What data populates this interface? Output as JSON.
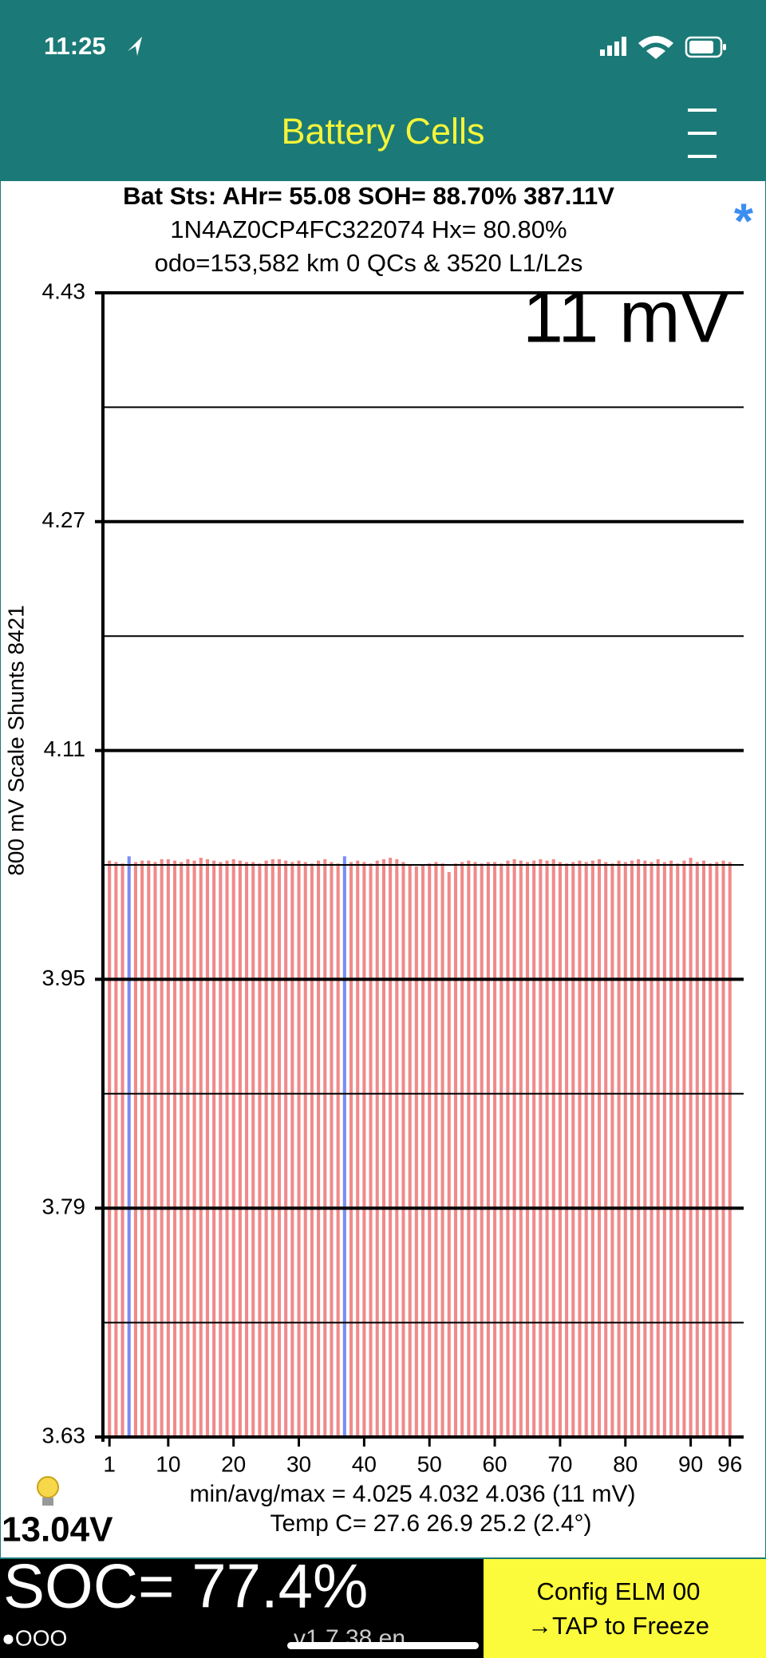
{
  "status_bar": {
    "time": "11:25"
  },
  "header": {
    "title": "Battery Cells"
  },
  "info": {
    "line1": "Bat Sts: AHr= 55.08 SOH= 88.70% 387.11V",
    "line2": "1N4AZ0CP4FC322074   Hx= 80.80%",
    "line3": "odo=153,582 km 0 QCs & 3520 L1/L2s",
    "marker": "*"
  },
  "chart_data": {
    "type": "bar",
    "scale_label": "11 mV",
    "y_label": "800 mV Scale   Shunts 8421",
    "x": [
      1,
      2,
      3,
      4,
      5,
      6,
      7,
      8,
      9,
      10,
      11,
      12,
      13,
      14,
      15,
      16,
      17,
      18,
      19,
      20,
      21,
      22,
      23,
      24,
      25,
      26,
      27,
      28,
      29,
      30,
      31,
      32,
      33,
      34,
      35,
      36,
      37,
      38,
      39,
      40,
      41,
      42,
      43,
      44,
      45,
      46,
      47,
      48,
      49,
      50,
      51,
      52,
      53,
      54,
      55,
      56,
      57,
      58,
      59,
      60,
      61,
      62,
      63,
      64,
      65,
      66,
      67,
      68,
      69,
      70,
      71,
      72,
      73,
      74,
      75,
      76,
      77,
      78,
      79,
      80,
      81,
      82,
      83,
      84,
      85,
      86,
      87,
      88,
      89,
      90,
      91,
      92,
      93,
      94,
      95,
      96
    ],
    "values": [
      4.033,
      4.032,
      4.031,
      4.036,
      4.032,
      4.033,
      4.033,
      4.032,
      4.034,
      4.034,
      4.033,
      4.032,
      4.034,
      4.033,
      4.035,
      4.034,
      4.033,
      4.032,
      4.033,
      4.034,
      4.033,
      4.032,
      4.032,
      4.031,
      4.033,
      4.034,
      4.034,
      4.033,
      4.032,
      4.033,
      4.032,
      4.031,
      4.033,
      4.034,
      4.032,
      4.031,
      4.036,
      4.032,
      4.033,
      4.032,
      4.031,
      4.033,
      4.034,
      4.035,
      4.034,
      4.032,
      4.03,
      4.029,
      4.03,
      4.031,
      4.032,
      4.031,
      4.025,
      4.031,
      4.032,
      4.033,
      4.032,
      4.031,
      4.032,
      4.032,
      4.031,
      4.033,
      4.034,
      4.033,
      4.032,
      4.033,
      4.034,
      4.033,
      4.034,
      4.032,
      4.031,
      4.032,
      4.033,
      4.032,
      4.033,
      4.034,
      4.032,
      4.031,
      4.033,
      4.032,
      4.033,
      4.034,
      4.033,
      4.032,
      4.034,
      4.032,
      4.033,
      4.031,
      4.033,
      4.035,
      4.032,
      4.033,
      4.031,
      4.032,
      4.033,
      4.032
    ],
    "colors": [
      "#f08a8a",
      "#f08a8a",
      "#f08a8a",
      "#7b8cf0",
      "#f08a8a",
      "#f08a8a",
      "#f08a8a",
      "#f08a8a",
      "#f08a8a",
      "#f08a8a",
      "#f08a8a",
      "#f08a8a",
      "#f08a8a",
      "#f08a8a",
      "#f08a8a",
      "#f08a8a",
      "#f08a8a",
      "#f08a8a",
      "#f08a8a",
      "#f08a8a",
      "#f08a8a",
      "#f08a8a",
      "#f08a8a",
      "#f08a8a",
      "#f08a8a",
      "#f08a8a",
      "#f08a8a",
      "#f08a8a",
      "#f08a8a",
      "#f08a8a",
      "#f08a8a",
      "#f08a8a",
      "#f08a8a",
      "#f08a8a",
      "#f08a8a",
      "#f08a8a",
      "#7b8cf0",
      "#f08a8a",
      "#f08a8a",
      "#f08a8a",
      "#f08a8a",
      "#f08a8a",
      "#f08a8a",
      "#f08a8a",
      "#f08a8a",
      "#f08a8a",
      "#f08a8a",
      "#f08a8a",
      "#f08a8a",
      "#f08a8a",
      "#f08a8a",
      "#f08a8a",
      "#f08a8a",
      "#f08a8a",
      "#f08a8a",
      "#f08a8a",
      "#f08a8a",
      "#f08a8a",
      "#f08a8a",
      "#f08a8a",
      "#f08a8a",
      "#f08a8a",
      "#f08a8a",
      "#f08a8a",
      "#f08a8a",
      "#f08a8a",
      "#f08a8a",
      "#f08a8a",
      "#f08a8a",
      "#f08a8a",
      "#f08a8a",
      "#f08a8a",
      "#f08a8a",
      "#f08a8a",
      "#f08a8a",
      "#f08a8a",
      "#f08a8a",
      "#f08a8a",
      "#f08a8a",
      "#f08a8a",
      "#f08a8a",
      "#f08a8a",
      "#f08a8a",
      "#f08a8a",
      "#f08a8a",
      "#f08a8a",
      "#f08a8a",
      "#f08a8a",
      "#f08a8a",
      "#f08a8a",
      "#f08a8a",
      "#f08a8a",
      "#f08a8a",
      "#f08a8a",
      "#f08a8a",
      "#f08a8a"
    ],
    "xlim": [
      0,
      97.5
    ],
    "xticks": [
      1,
      10,
      20,
      30,
      40,
      50,
      60,
      70,
      80,
      90,
      96
    ],
    "ylim": [
      3.63,
      4.43
    ],
    "yticks": [
      3.63,
      3.79,
      3.95,
      4.11,
      4.27,
      4.43
    ],
    "minor_yticks": [
      3.71,
      3.87,
      4.03,
      4.19,
      4.35
    ],
    "grid": true
  },
  "stats": {
    "minmax": "min/avg/max = 4.025 4.032 4.036  (11 mV)",
    "temp": "Temp C= 27.6  26.9  25.2  (2.4°)"
  },
  "footer": {
    "voltage": "13.04V",
    "soc": "SOC= 77.4%",
    "dots": "●OOO",
    "version": "v1.7.38 en",
    "config": "Config ELM  00",
    "tap": "→TAP to Freeze"
  }
}
